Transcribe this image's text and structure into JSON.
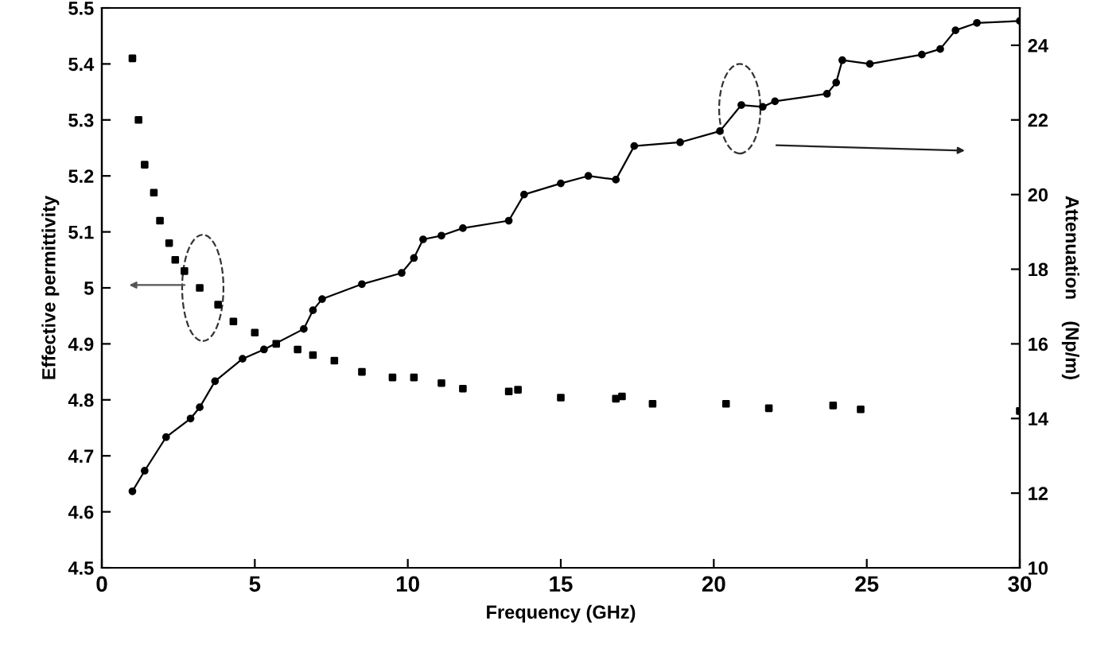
{
  "chart_data": {
    "type": "line",
    "xlabel": "Frequency (GHz)",
    "ylabel": "Effective permittivity",
    "y2label": "Attenuation    (Np/m)",
    "xlim": [
      0,
      30
    ],
    "xticks": [
      0,
      5,
      10,
      15,
      20,
      25,
      30
    ],
    "ylim": [
      4.5,
      5.5
    ],
    "yticks": [
      4.5,
      4.6,
      4.7,
      4.8,
      4.9,
      5,
      5.1,
      5.2,
      5.3,
      5.4,
      5.5
    ],
    "y2lim": [
      10,
      25
    ],
    "y2ticks": [
      10,
      12,
      14,
      16,
      18,
      20,
      22,
      24
    ],
    "grid": false,
    "series": [
      {
        "type": "scatter",
        "marker": "square",
        "color": "#000000",
        "x": [
          1.0,
          1.2,
          1.4,
          1.7,
          1.9,
          2.2,
          2.4,
          2.7,
          3.2,
          3.8,
          4.3,
          5.0,
          5.7,
          6.4,
          6.9,
          7.6,
          8.5,
          9.5,
          10.2,
          11.1,
          11.8,
          13.3,
          13.6,
          15.0,
          16.8,
          17.0,
          18.0,
          20.4,
          21.8,
          23.9,
          24.8,
          30.0
        ],
        "values": [
          5.41,
          5.3,
          5.22,
          5.17,
          5.12,
          5.08,
          5.05,
          5.03,
          5.0,
          4.97,
          4.94,
          4.92,
          4.9,
          4.89,
          4.88,
          4.87,
          4.85,
          4.84,
          4.84,
          4.83,
          4.82,
          4.815,
          4.818,
          4.804,
          4.802,
          4.806,
          4.793,
          4.793,
          4.785,
          4.79,
          4.783,
          4.78
        ]
      },
      {
        "axis": "y2",
        "marker": "circle",
        "color": "#000000",
        "x": [
          1.0,
          1.4,
          2.1,
          2.9,
          3.2,
          3.7,
          4.6,
          5.3,
          6.6,
          6.9,
          7.2,
          8.5,
          9.8,
          10.2,
          10.5,
          11.1,
          11.8,
          13.3,
          13.8,
          15.0,
          15.9,
          16.8,
          17.4,
          18.9,
          20.2,
          20.9,
          21.6,
          22.0,
          23.7,
          24.0,
          24.2,
          25.1,
          26.8,
          27.4,
          27.9,
          28.6,
          30.0
        ],
        "values": [
          12.05,
          12.6,
          13.5,
          14.0,
          14.3,
          15.0,
          15.6,
          15.85,
          16.4,
          16.9,
          17.2,
          17.6,
          17.9,
          18.3,
          18.8,
          18.9,
          19.1,
          19.3,
          20.0,
          20.3,
          20.5,
          20.4,
          21.3,
          21.4,
          21.7,
          22.4,
          22.35,
          22.5,
          22.7,
          23.0,
          23.6,
          23.5,
          23.75,
          23.9,
          24.4,
          24.6,
          24.65
        ]
      }
    ]
  }
}
